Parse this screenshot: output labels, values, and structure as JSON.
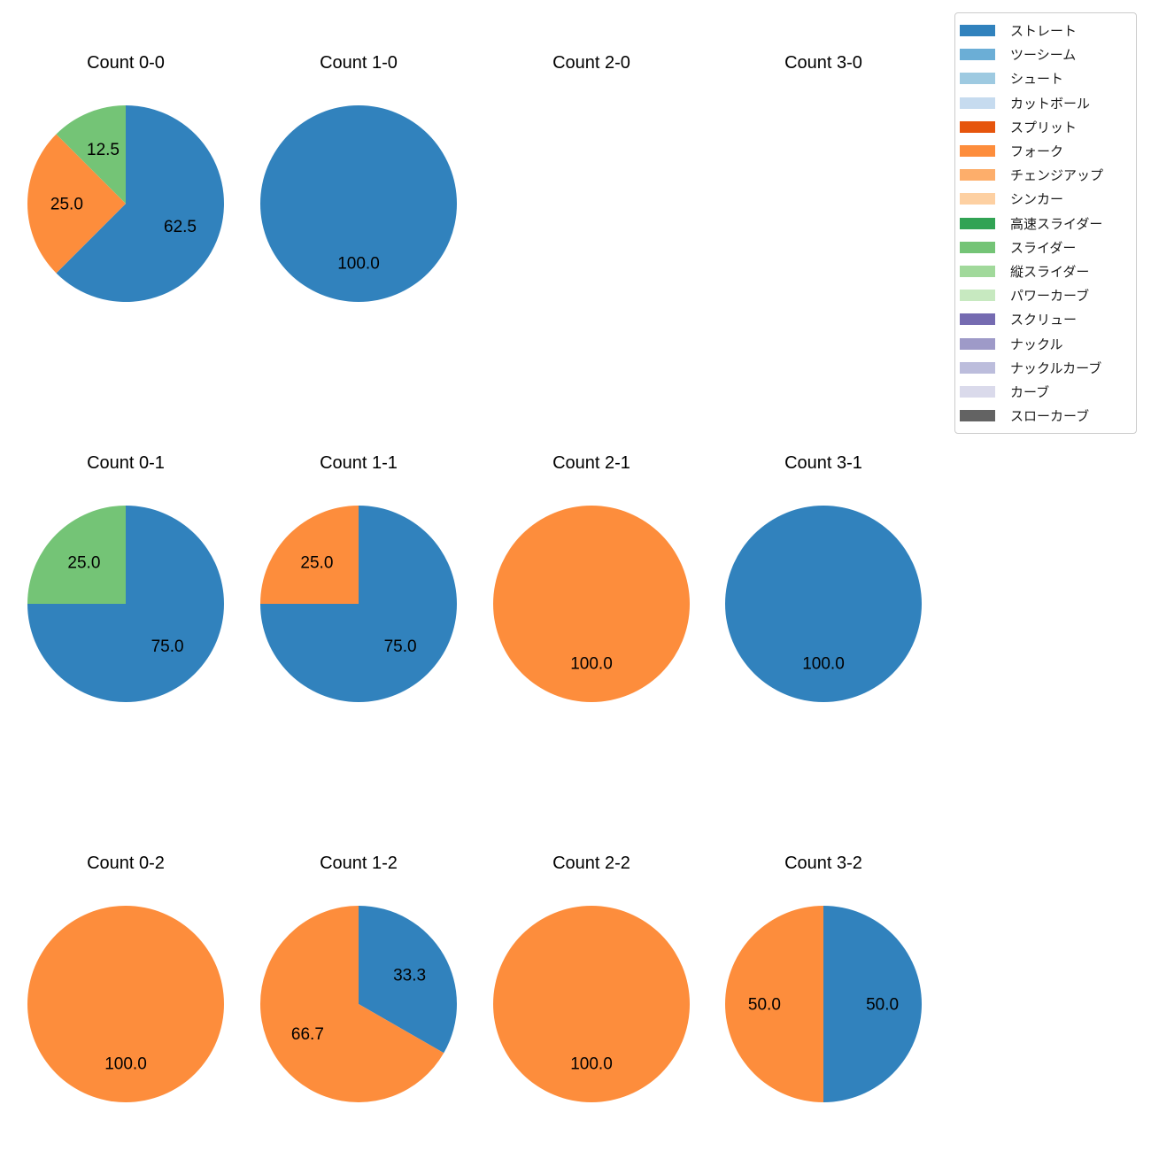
{
  "figure": {
    "background_color": "#ffffff"
  },
  "legend": {
    "items": [
      {
        "label": "ストレート",
        "color": "#3182bd"
      },
      {
        "label": "ツーシーム",
        "color": "#6baed6"
      },
      {
        "label": "シュート",
        "color": "#9ecae1"
      },
      {
        "label": "カットボール",
        "color": "#c6dbef"
      },
      {
        "label": "スプリット",
        "color": "#e6550d"
      },
      {
        "label": "フォーク",
        "color": "#fd8d3c"
      },
      {
        "label": "チェンジアップ",
        "color": "#fdae6b"
      },
      {
        "label": "シンカー",
        "color": "#fdd0a2"
      },
      {
        "label": "高速スライダー",
        "color": "#31a354"
      },
      {
        "label": "スライダー",
        "color": "#74c476"
      },
      {
        "label": "縦スライダー",
        "color": "#a1d99b"
      },
      {
        "label": "パワーカーブ",
        "color": "#c7e9c0"
      },
      {
        "label": "スクリュー",
        "color": "#756bb1"
      },
      {
        "label": "ナックル",
        "color": "#9e9ac8"
      },
      {
        "label": "ナックルカーブ",
        "color": "#bcbddc"
      },
      {
        "label": "カーブ",
        "color": "#dadaeb"
      },
      {
        "label": "スローカーブ",
        "color": "#636363"
      }
    ]
  },
  "chart_data": [
    {
      "type": "pie",
      "title": "Count 0-0",
      "start_angle_deg": 90,
      "counterclock": false,
      "value_format": "percent",
      "slices": [
        {
          "label": "ストレート",
          "value": 62.5,
          "pct_label": "62.5",
          "color": "#3182bd"
        },
        {
          "label": "フォーク",
          "value": 25.0,
          "pct_label": "25.0",
          "color": "#fd8d3c"
        },
        {
          "label": "スライダー",
          "value": 12.5,
          "pct_label": "12.5",
          "color": "#74c476"
        }
      ]
    },
    {
      "type": "pie",
      "title": "Count 1-0",
      "start_angle_deg": 90,
      "counterclock": false,
      "value_format": "percent",
      "slices": [
        {
          "label": "ストレート",
          "value": 100.0,
          "pct_label": "100.0",
          "color": "#3182bd"
        }
      ]
    },
    {
      "type": "pie",
      "title": "Count 2-0",
      "start_angle_deg": 90,
      "counterclock": false,
      "value_format": "percent",
      "slices": []
    },
    {
      "type": "pie",
      "title": "Count 3-0",
      "start_angle_deg": 90,
      "counterclock": false,
      "value_format": "percent",
      "slices": []
    },
    {
      "type": "pie",
      "title": "Count 0-1",
      "start_angle_deg": 90,
      "counterclock": false,
      "value_format": "percent",
      "slices": [
        {
          "label": "ストレート",
          "value": 75.0,
          "pct_label": "75.0",
          "color": "#3182bd"
        },
        {
          "label": "スライダー",
          "value": 25.0,
          "pct_label": "25.0",
          "color": "#74c476"
        }
      ]
    },
    {
      "type": "pie",
      "title": "Count 1-1",
      "start_angle_deg": 90,
      "counterclock": false,
      "value_format": "percent",
      "slices": [
        {
          "label": "ストレート",
          "value": 75.0,
          "pct_label": "75.0",
          "color": "#3182bd"
        },
        {
          "label": "フォーク",
          "value": 25.0,
          "pct_label": "25.0",
          "color": "#fd8d3c"
        }
      ]
    },
    {
      "type": "pie",
      "title": "Count 2-1",
      "start_angle_deg": 90,
      "counterclock": false,
      "value_format": "percent",
      "slices": [
        {
          "label": "フォーク",
          "value": 100.0,
          "pct_label": "100.0",
          "color": "#fd8d3c"
        }
      ]
    },
    {
      "type": "pie",
      "title": "Count 3-1",
      "start_angle_deg": 90,
      "counterclock": false,
      "value_format": "percent",
      "slices": [
        {
          "label": "ストレート",
          "value": 100.0,
          "pct_label": "100.0",
          "color": "#3182bd"
        }
      ]
    },
    {
      "type": "pie",
      "title": "Count 0-2",
      "start_angle_deg": 90,
      "counterclock": false,
      "value_format": "percent",
      "slices": [
        {
          "label": "フォーク",
          "value": 100.0,
          "pct_label": "100.0",
          "color": "#fd8d3c"
        }
      ]
    },
    {
      "type": "pie",
      "title": "Count 1-2",
      "start_angle_deg": 90,
      "counterclock": false,
      "value_format": "percent",
      "slices": [
        {
          "label": "ストレート",
          "value": 33.3,
          "pct_label": "33.3",
          "color": "#3182bd"
        },
        {
          "label": "フォーク",
          "value": 66.7,
          "pct_label": "66.7",
          "color": "#fd8d3c"
        }
      ]
    },
    {
      "type": "pie",
      "title": "Count 2-2",
      "start_angle_deg": 90,
      "counterclock": false,
      "value_format": "percent",
      "slices": [
        {
          "label": "フォーク",
          "value": 100.0,
          "pct_label": "100.0",
          "color": "#fd8d3c"
        }
      ]
    },
    {
      "type": "pie",
      "title": "Count 3-2",
      "start_angle_deg": 90,
      "counterclock": false,
      "value_format": "percent",
      "slices": [
        {
          "label": "ストレート",
          "value": 50.0,
          "pct_label": "50.0",
          "color": "#3182bd"
        },
        {
          "label": "フォーク",
          "value": 50.0,
          "pct_label": "50.0",
          "color": "#fd8d3c"
        }
      ]
    }
  ]
}
